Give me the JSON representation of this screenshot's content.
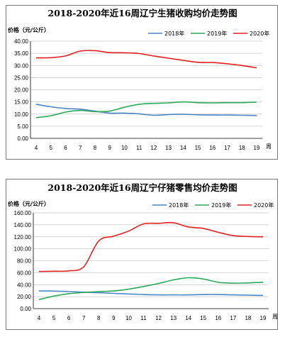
{
  "chart_data": [
    {
      "type": "line",
      "title": "2018-2020年近16周辽宁生猪收购均价走势图",
      "ylabel": "价格（元/公斤）",
      "xlabel": "周",
      "x": [
        4,
        5,
        6,
        7,
        8,
        9,
        10,
        11,
        12,
        13,
        14,
        15,
        16,
        17,
        18,
        19
      ],
      "x_tick_labels": [
        "4",
        "5",
        "6",
        "7",
        "8",
        "9",
        "10",
        "11",
        "12",
        "13",
        "14",
        "15",
        "16",
        "17",
        "18",
        "19"
      ],
      "ylim": [
        0,
        40
      ],
      "yticks": [
        0,
        5,
        10,
        15,
        20,
        25,
        30,
        35,
        40
      ],
      "y_tick_labels": [
        "0.00",
        "5.00",
        "10.00",
        "15.00",
        "20.00",
        "25.00",
        "30.00",
        "35.00",
        "40.00"
      ],
      "grid": "horizontal",
      "legend_position": "top",
      "series": [
        {
          "name": "2018年",
          "color": "#4a86c5",
          "values": [
            14.0,
            13.0,
            12.3,
            12.0,
            11.2,
            10.4,
            10.4,
            10.1,
            9.5,
            9.8,
            9.9,
            9.7,
            9.6,
            9.6,
            9.5,
            9.4
          ]
        },
        {
          "name": "2019年",
          "color": "#2ea85a",
          "values": [
            8.5,
            9.3,
            10.8,
            11.5,
            11.0,
            11.2,
            12.8,
            14.0,
            14.4,
            14.6,
            15.0,
            14.7,
            14.6,
            14.7,
            14.7,
            14.9
          ]
        },
        {
          "name": "2020年",
          "color": "#e02020",
          "values": [
            33.1,
            33.2,
            33.9,
            35.9,
            36.1,
            35.3,
            35.2,
            34.9,
            33.9,
            33.0,
            32.1,
            31.3,
            31.2,
            30.7,
            30.0,
            29.0
          ]
        }
      ]
    },
    {
      "type": "line",
      "title": "2018-2020年近16周辽宁仔猪零售均价走势图",
      "ylabel": "价格（元/公斤）",
      "xlabel": "周",
      "x": [
        4,
        5,
        6,
        7,
        8,
        9,
        10,
        11,
        12,
        13,
        14,
        15,
        16,
        17,
        18,
        19
      ],
      "x_tick_labels": [
        "4",
        "5",
        "6",
        "7",
        "8",
        "9",
        "10",
        "11",
        "12",
        "13",
        "14",
        "15",
        "16",
        "17",
        "18",
        "19"
      ],
      "ylim": [
        0,
        160
      ],
      "yticks": [
        0,
        20,
        40,
        60,
        80,
        100,
        120,
        140,
        160
      ],
      "y_tick_labels": [
        "0.00",
        "20.00",
        "40.00",
        "60.00",
        "80.00",
        "100.00",
        "120.00",
        "140.00",
        "160.00"
      ],
      "grid": "horizontal",
      "legend_position": "top",
      "series": [
        {
          "name": "2018年",
          "color": "#4a86c5",
          "values": [
            29.5,
            29.3,
            28.5,
            27.5,
            26.5,
            25.5,
            24.5,
            23.5,
            23.0,
            23.0,
            23.0,
            23.5,
            23.5,
            23.0,
            22.5,
            22.0
          ]
        },
        {
          "name": "2019年",
          "color": "#2ea85a",
          "values": [
            15.0,
            21.0,
            25.0,
            27.0,
            28.5,
            29.5,
            32.5,
            37.0,
            42.0,
            48.0,
            51.5,
            49.5,
            44.0,
            42.5,
            43.0,
            44.0
          ]
        },
        {
          "name": "2020年",
          "color": "#e02020",
          "values": [
            62.0,
            62.5,
            63.0,
            70.0,
            113.0,
            121.0,
            129.5,
            141.5,
            142.5,
            143.5,
            136.5,
            134.0,
            127.5,
            122.0,
            120.5,
            120.0
          ]
        }
      ]
    }
  ]
}
